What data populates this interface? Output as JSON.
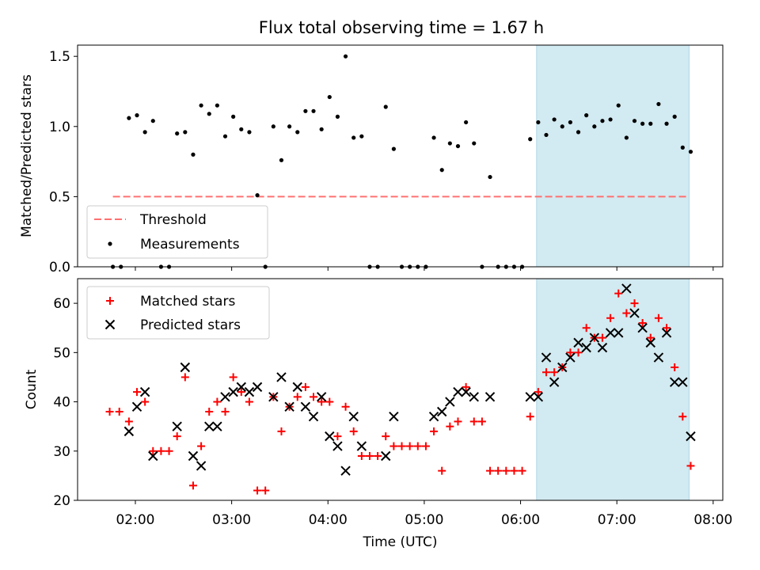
{
  "title": "Flux total observing time = 1.67 h",
  "chart_data": [
    {
      "type": "scatter",
      "panel": "top",
      "ylabel": "Matched/Predicted stars",
      "ylim": [
        0,
        1.58
      ],
      "yticks": [
        0.0,
        0.5,
        1.0,
        1.5
      ],
      "ytick_labels": [
        "0.0",
        "0.5",
        "1.0",
        "1.5"
      ],
      "xlim": [
        "01:24",
        "08:06"
      ],
      "shaded_span": [
        "06:10",
        "07:45"
      ],
      "threshold": {
        "name": "Threshold",
        "value": 0.5,
        "x_range": [
          "01:46",
          "07:45"
        ],
        "color": "#ff7070"
      },
      "series": [
        {
          "name": "Measurements",
          "color": "#000000",
          "points": [
            [
              "01:46",
              0
            ],
            [
              "01:51",
              0
            ],
            [
              "01:56",
              1.06
            ],
            [
              "02:01",
              1.08
            ],
            [
              "02:06",
              0.96
            ],
            [
              "02:11",
              1.04
            ],
            [
              "02:16",
              0
            ],
            [
              "02:21",
              0
            ],
            [
              "02:26",
              0.95
            ],
            [
              "02:31",
              0.96
            ],
            [
              "02:36",
              0.8
            ],
            [
              "02:41",
              1.15
            ],
            [
              "02:46",
              1.09
            ],
            [
              "02:51",
              1.15
            ],
            [
              "02:56",
              0.93
            ],
            [
              "03:01",
              1.07
            ],
            [
              "03:06",
              0.98
            ],
            [
              "03:11",
              0.96
            ],
            [
              "03:16",
              0.51
            ],
            [
              "03:21",
              0
            ],
            [
              "03:26",
              1.0
            ],
            [
              "03:31",
              0.76
            ],
            [
              "03:36",
              1.0
            ],
            [
              "03:41",
              0.96
            ],
            [
              "03:46",
              1.11
            ],
            [
              "03:51",
              1.11
            ],
            [
              "03:56",
              0.98
            ],
            [
              "04:01",
              1.21
            ],
            [
              "04:06",
              1.07
            ],
            [
              "04:11",
              1.5
            ],
            [
              "04:16",
              0.92
            ],
            [
              "04:21",
              0.93
            ],
            [
              "04:26",
              0
            ],
            [
              "04:31",
              0
            ],
            [
              "04:36",
              1.14
            ],
            [
              "04:41",
              0.84
            ],
            [
              "04:46",
              0
            ],
            [
              "04:51",
              0
            ],
            [
              "04:56",
              0
            ],
            [
              "05:01",
              0
            ],
            [
              "05:06",
              0.92
            ],
            [
              "05:11",
              0.69
            ],
            [
              "05:16",
              0.88
            ],
            [
              "05:21",
              0.86
            ],
            [
              "05:26",
              1.03
            ],
            [
              "05:31",
              0.88
            ],
            [
              "05:36",
              0
            ],
            [
              "05:41",
              0.64
            ],
            [
              "05:46",
              0
            ],
            [
              "05:51",
              0
            ],
            [
              "05:56",
              0
            ],
            [
              "06:01",
              0
            ],
            [
              "06:06",
              0.91
            ],
            [
              "06:11",
              1.03
            ],
            [
              "06:16",
              0.94
            ],
            [
              "06:21",
              1.05
            ],
            [
              "06:26",
              1.0
            ],
            [
              "06:31",
              1.03
            ],
            [
              "06:36",
              0.96
            ],
            [
              "06:41",
              1.08
            ],
            [
              "06:46",
              1.0
            ],
            [
              "06:51",
              1.04
            ],
            [
              "06:56",
              1.05
            ],
            [
              "07:01",
              1.15
            ],
            [
              "07:06",
              0.92
            ],
            [
              "07:11",
              1.04
            ],
            [
              "07:16",
              1.02
            ],
            [
              "07:21",
              1.02
            ],
            [
              "07:26",
              1.16
            ],
            [
              "07:31",
              1.02
            ],
            [
              "07:36",
              1.07
            ],
            [
              "07:41",
              0.85
            ],
            [
              "07:46",
              0.82
            ]
          ]
        }
      ],
      "legend": {
        "position": "lower-left",
        "entries": [
          "Threshold",
          "Measurements"
        ]
      }
    },
    {
      "type": "scatter",
      "panel": "bottom",
      "ylabel": "Count",
      "xlabel": "Time (UTC)",
      "ylim": [
        20,
        65
      ],
      "yticks": [
        20,
        30,
        40,
        50,
        60
      ],
      "ytick_labels": [
        "20",
        "30",
        "40",
        "50",
        "60"
      ],
      "xlim": [
        "01:24",
        "08:06"
      ],
      "xticks": [
        "02:00",
        "03:00",
        "04:00",
        "05:00",
        "06:00",
        "07:00",
        "08:00"
      ],
      "xtick_labels": [
        "02:00",
        "03:00",
        "04:00",
        "05:00",
        "06:00",
        "07:00",
        "08:00"
      ],
      "shaded_span": [
        "06:10",
        "07:45"
      ],
      "series": [
        {
          "name": "Matched stars",
          "marker": "plus",
          "color": "#ff0000",
          "points": [
            [
              "01:44",
              38
            ],
            [
              "01:50",
              38
            ],
            [
              "01:56",
              36
            ],
            [
              "02:01",
              42
            ],
            [
              "02:06",
              40
            ],
            [
              "02:11",
              30
            ],
            [
              "02:16",
              30
            ],
            [
              "02:21",
              30
            ],
            [
              "02:26",
              33
            ],
            [
              "02:31",
              45
            ],
            [
              "02:36",
              23
            ],
            [
              "02:41",
              31
            ],
            [
              "02:46",
              38
            ],
            [
              "02:51",
              40
            ],
            [
              "02:56",
              38
            ],
            [
              "03:01",
              45
            ],
            [
              "03:06",
              42
            ],
            [
              "03:11",
              40
            ],
            [
              "03:16",
              22
            ],
            [
              "03:21",
              22
            ],
            [
              "03:26",
              41
            ],
            [
              "03:31",
              34
            ],
            [
              "03:36",
              39
            ],
            [
              "03:41",
              41
            ],
            [
              "03:46",
              43
            ],
            [
              "03:51",
              41
            ],
            [
              "03:56",
              40
            ],
            [
              "04:01",
              40
            ],
            [
              "04:06",
              33
            ],
            [
              "04:11",
              39
            ],
            [
              "04:16",
              34
            ],
            [
              "04:21",
              29
            ],
            [
              "04:26",
              29
            ],
            [
              "04:31",
              29
            ],
            [
              "04:36",
              33
            ],
            [
              "04:41",
              31
            ],
            [
              "04:46",
              31
            ],
            [
              "04:51",
              31
            ],
            [
              "04:56",
              31
            ],
            [
              "05:01",
              31
            ],
            [
              "05:06",
              34
            ],
            [
              "05:11",
              26
            ],
            [
              "05:16",
              35
            ],
            [
              "05:21",
              36
            ],
            [
              "05:26",
              43
            ],
            [
              "05:31",
              36
            ],
            [
              "05:36",
              36
            ],
            [
              "05:41",
              26
            ],
            [
              "05:46",
              26
            ],
            [
              "05:51",
              26
            ],
            [
              "05:56",
              26
            ],
            [
              "06:01",
              26
            ],
            [
              "06:06",
              37
            ],
            [
              "06:11",
              42
            ],
            [
              "06:16",
              46
            ],
            [
              "06:21",
              46
            ],
            [
              "06:26",
              47
            ],
            [
              "06:31",
              50
            ],
            [
              "06:36",
              50
            ],
            [
              "06:41",
              55
            ],
            [
              "06:46",
              53
            ],
            [
              "06:51",
              53
            ],
            [
              "06:56",
              57
            ],
            [
              "07:01",
              62
            ],
            [
              "07:06",
              58
            ],
            [
              "07:11",
              60
            ],
            [
              "07:16",
              56
            ],
            [
              "07:21",
              53
            ],
            [
              "07:26",
              57
            ],
            [
              "07:31",
              55
            ],
            [
              "07:36",
              47
            ],
            [
              "07:41",
              37
            ],
            [
              "07:46",
              27
            ]
          ]
        },
        {
          "name": "Predicted stars",
          "marker": "x",
          "color": "#000000",
          "points": [
            [
              "01:56",
              34
            ],
            [
              "02:01",
              39
            ],
            [
              "02:06",
              42
            ],
            [
              "02:11",
              29
            ],
            [
              "02:26",
              35
            ],
            [
              "02:31",
              47
            ],
            [
              "02:36",
              29
            ],
            [
              "02:41",
              27
            ],
            [
              "02:46",
              35
            ],
            [
              "02:51",
              35
            ],
            [
              "02:56",
              41
            ],
            [
              "03:01",
              42
            ],
            [
              "03:06",
              43
            ],
            [
              "03:11",
              42
            ],
            [
              "03:16",
              43
            ],
            [
              "03:26",
              41
            ],
            [
              "03:31",
              45
            ],
            [
              "03:36",
              39
            ],
            [
              "03:41",
              43
            ],
            [
              "03:46",
              39
            ],
            [
              "03:51",
              37
            ],
            [
              "03:56",
              41
            ],
            [
              "04:01",
              33
            ],
            [
              "04:06",
              31
            ],
            [
              "04:11",
              26
            ],
            [
              "04:16",
              37
            ],
            [
              "04:21",
              31
            ],
            [
              "04:36",
              29
            ],
            [
              "04:41",
              37
            ],
            [
              "05:06",
              37
            ],
            [
              "05:11",
              38
            ],
            [
              "05:16",
              40
            ],
            [
              "05:21",
              42
            ],
            [
              "05:26",
              42
            ],
            [
              "05:31",
              41
            ],
            [
              "05:41",
              41
            ],
            [
              "06:06",
              41
            ],
            [
              "06:11",
              41
            ],
            [
              "06:16",
              49
            ],
            [
              "06:21",
              44
            ],
            [
              "06:26",
              47
            ],
            [
              "06:31",
              49
            ],
            [
              "06:36",
              52
            ],
            [
              "06:41",
              51
            ],
            [
              "06:46",
              53
            ],
            [
              "06:51",
              51
            ],
            [
              "06:56",
              54
            ],
            [
              "07:01",
              54
            ],
            [
              "07:06",
              63
            ],
            [
              "07:11",
              58
            ],
            [
              "07:16",
              55
            ],
            [
              "07:21",
              52
            ],
            [
              "07:26",
              49
            ],
            [
              "07:31",
              54
            ],
            [
              "07:36",
              44
            ],
            [
              "07:41",
              44
            ],
            [
              "07:46",
              33
            ]
          ]
        }
      ],
      "legend": {
        "position": "top-left",
        "entries": [
          "Matched stars",
          "Predicted stars"
        ]
      }
    }
  ],
  "colors": {
    "shade": "#add8e6",
    "threshold": "#ff7070",
    "matched": "#ff0000",
    "predicted": "#000000",
    "measurements": "#000000"
  }
}
